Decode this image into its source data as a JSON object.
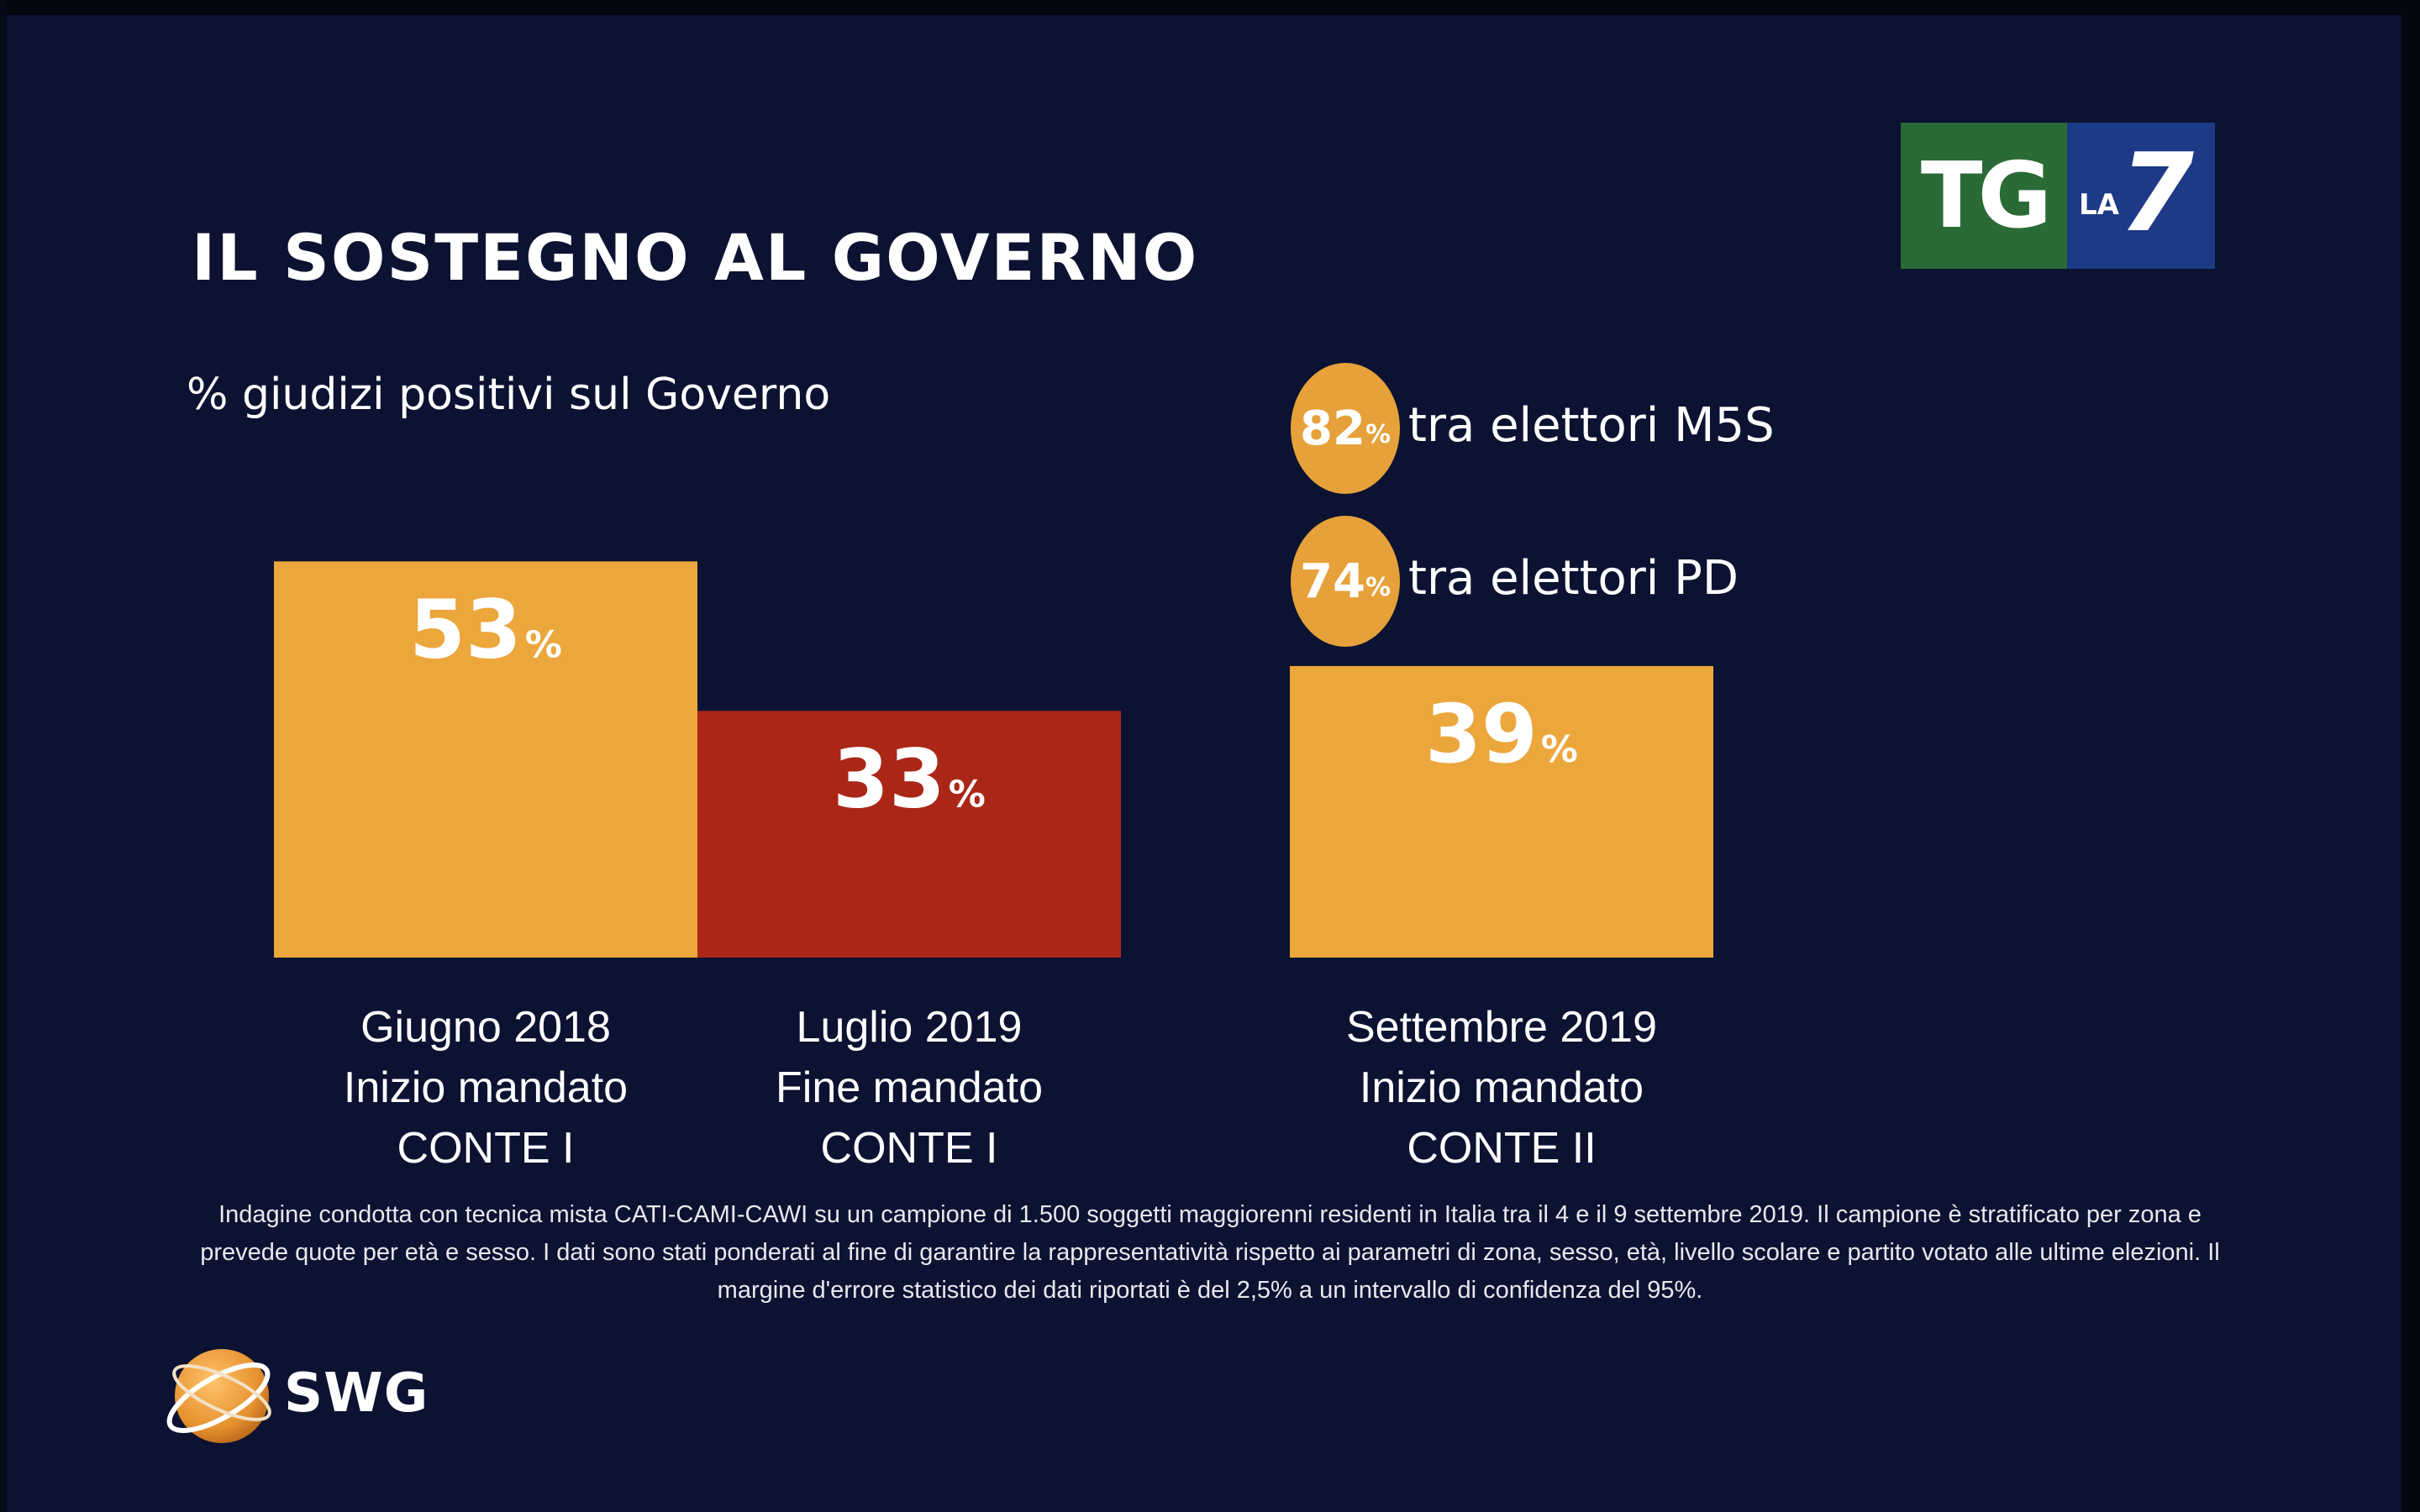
{
  "title": "IL SOSTEGNO AL GOVERNO",
  "subtitle": "% giudizi positivi sul Governo",
  "logo": {
    "tg": "TG",
    "la": "LA",
    "seven": "7"
  },
  "chart_data": {
    "type": "bar",
    "unit": "%",
    "ylim": [
      0,
      100
    ],
    "grid": false,
    "categories": [
      [
        "Giugno 2018",
        "Inizio mandato",
        "CONTE I"
      ],
      [
        "Luglio 2019",
        "Fine mandato",
        "CONTE I"
      ],
      [
        "Settembre 2019",
        "Inizio mandato",
        "CONTE II"
      ]
    ],
    "values": [
      53,
      33,
      39
    ],
    "colors": [
      "#eba63c",
      "#aa2718",
      "#eba63c"
    ]
  },
  "bullets": [
    {
      "value": "82",
      "unit": "%",
      "text": "tra elettori M5S"
    },
    {
      "value": "74",
      "unit": "%",
      "text": "tra elettori PD"
    }
  ],
  "note": "Indagine condotta con tecnica mista CATI-CAMI-CAWI su un campione di 1.500 soggetti maggiorenni residenti in Italia tra il 4 e il 9 settembre 2019. Il campione è stratificato per zona e prevede quote per età e sesso. I dati sono stati ponderati al fine di garantire la rappresentatività rispetto ai parametri di zona, sesso, età, livello scolare e partito votato alle ultime elezioni. Il margine d'errore statistico dei dati riportati è del 2,5% a un intervallo di confidenza del 95%.",
  "brand": {
    "name": "SWG",
    "accent": "#e6912f"
  }
}
